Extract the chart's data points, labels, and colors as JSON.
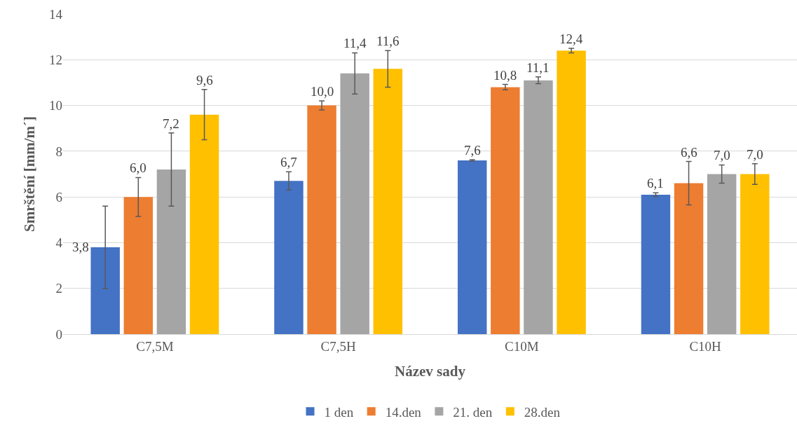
{
  "chart_data": {
    "type": "bar",
    "xlabel": "Název sady",
    "ylabel": "Smrštění [mm/m´]",
    "categories": [
      "C7,5M",
      "C7,5H",
      "C10M",
      "C10H"
    ],
    "series": [
      {
        "name": "1 den",
        "color": "#4472c4",
        "values": [
          3.8,
          6.7,
          7.6,
          6.1
        ],
        "errors": [
          1.8,
          0.4,
          0.03,
          0.08
        ],
        "value_labels": [
          "3,8",
          "6,7",
          "7,6",
          "6,1"
        ]
      },
      {
        "name": "14.den",
        "color": "#ed7d31",
        "values": [
          6.0,
          10.0,
          10.8,
          6.6
        ],
        "errors": [
          0.85,
          0.2,
          0.12,
          0.95
        ],
        "value_labels": [
          "6,0",
          "10,0",
          "10,8",
          "6,6"
        ]
      },
      {
        "name": "21. den",
        "color": "#a5a5a5",
        "values": [
          7.2,
          11.4,
          11.1,
          7.0
        ],
        "errors": [
          1.6,
          0.9,
          0.15,
          0.4
        ],
        "value_labels": [
          "7,2",
          "11,4",
          "11,1",
          "7,0"
        ]
      },
      {
        "name": "28.den",
        "color": "#ffc000",
        "values": [
          9.6,
          11.6,
          12.4,
          7.0
        ],
        "errors": [
          1.1,
          0.8,
          0.1,
          0.45
        ],
        "value_labels": [
          "9,6",
          "11,6",
          "12,4",
          "7,0"
        ]
      }
    ],
    "ylim": [
      0,
      14
    ],
    "yticks": [
      0,
      2,
      4,
      6,
      8,
      10,
      12,
      14
    ],
    "grid": "y",
    "legend": "bottom"
  }
}
